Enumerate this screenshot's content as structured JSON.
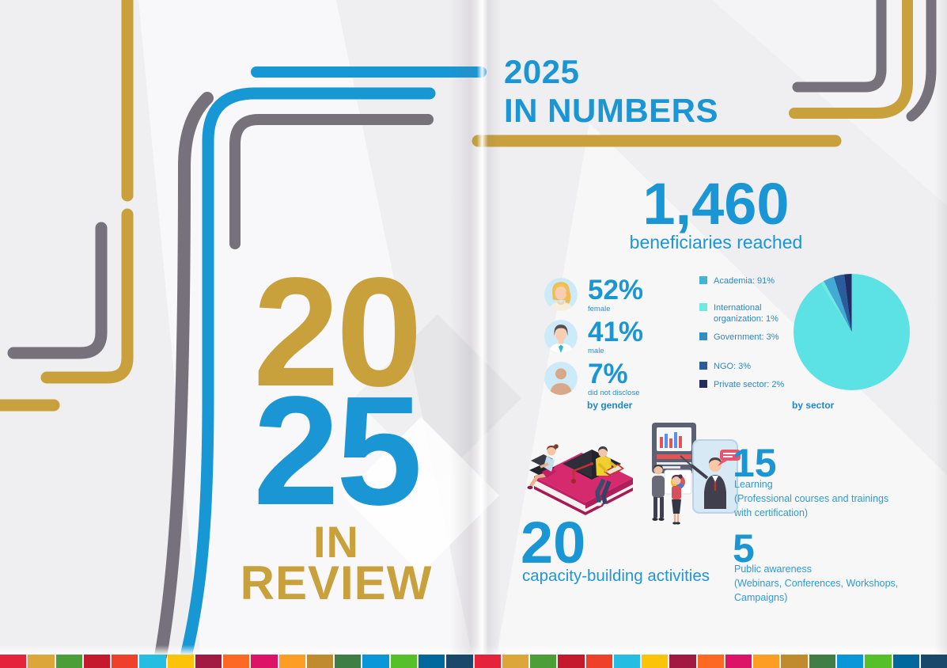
{
  "left_page": {
    "year_top": "20",
    "year_bottom": "25",
    "caption_line1": "IN",
    "caption_line2": "REVIEW"
  },
  "right_page": {
    "title_line1": "2025",
    "title_line2": "IN NUMBERS",
    "beneficiaries_value": "1,460",
    "beneficiaries_label": "beneficiaries reached",
    "gender": {
      "caption": "by gender",
      "items": [
        {
          "value": "52%",
          "label": "female",
          "icon": "female-avatar-icon"
        },
        {
          "value": "41%",
          "label": "male",
          "icon": "male-avatar-icon"
        },
        {
          "value": "7%",
          "label": "did not disclose",
          "icon": "person-avatar-icon"
        }
      ]
    },
    "sector": {
      "caption": "by sector",
      "legend": [
        {
          "label": "Academia: 91%",
          "color": "#3eb7d4"
        },
        {
          "label": "International organization: 1%",
          "color": "#6fe9e0"
        },
        {
          "label": "Government: 3%",
          "color": "#2e8fc0"
        },
        {
          "label": "NGO: 3%",
          "color": "#2b5c9b"
        },
        {
          "label": "Private sector: 2%",
          "color": "#232b62"
        }
      ]
    },
    "stats": {
      "capacity": {
        "value": "20",
        "label": "capacity-building activities"
      },
      "learning": {
        "value": "15",
        "label": "Learning",
        "detail": "(Professional courses and trainings with certification)"
      },
      "awareness": {
        "value": "5",
        "label": "Public awareness",
        "detail": "(Webinars, Conferences, Workshops, Campaigns)"
      }
    }
  },
  "chart_data": {
    "type": "pie",
    "title": "by sector",
    "legend_position": "left",
    "slices": [
      {
        "label": "Academia",
        "value": 91,
        "color": "#5ce1e4"
      },
      {
        "label": "International organization",
        "value": 1,
        "color": "#70e9e0"
      },
      {
        "label": "Government",
        "value": 3,
        "color": "#45a9d6"
      },
      {
        "label": "NGO",
        "value": 3,
        "color": "#2b5c9b"
      },
      {
        "label": "Private sector",
        "value": 2,
        "color": "#232b62"
      }
    ]
  },
  "colors": {
    "accent_blue": "#1a96d5",
    "accent_gold": "#c8a13c",
    "line_gray": "#76717a",
    "background": "#efeef1"
  },
  "sdg_strip_colors": [
    "#e5243b",
    "#dda63a",
    "#4c9f38",
    "#c5192d",
    "#ef402b",
    "#26bde2",
    "#fcc30b",
    "#a21942",
    "#fd6925",
    "#dd1367",
    "#fd9d24",
    "#bf8b2e",
    "#3f7e44",
    "#0a97d9",
    "#56c02b",
    "#00689d",
    "#19486a"
  ]
}
